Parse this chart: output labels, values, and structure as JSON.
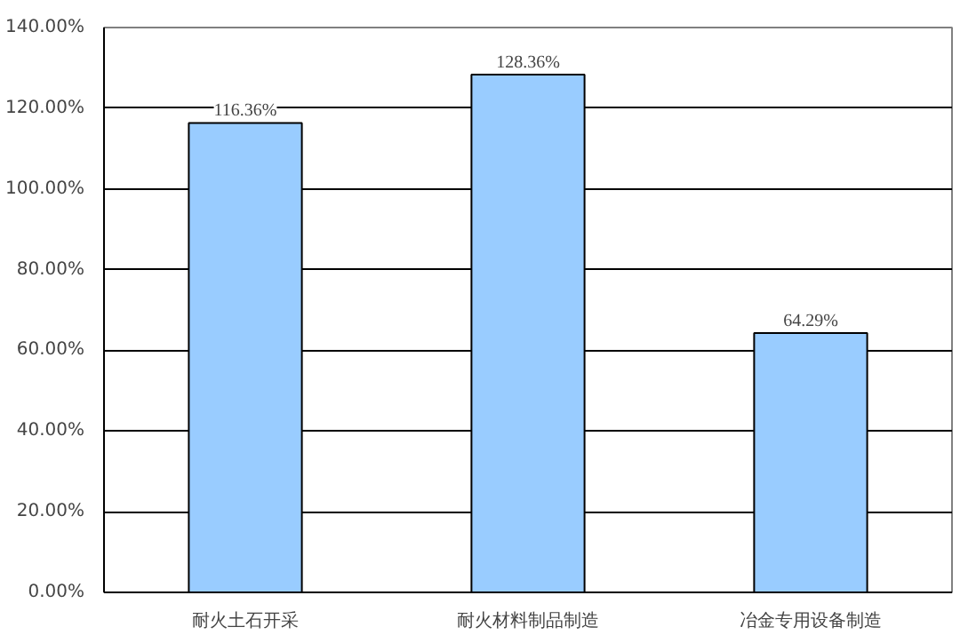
{
  "chart_data": {
    "type": "bar",
    "categories": [
      "耐火土石开采",
      "耐火材料制品制造",
      "冶金专用设备制造"
    ],
    "series": [
      {
        "color": "#99ccff",
        "values": [
          116.36,
          128.36,
          64.29
        ],
        "value_labels": [
          "116.36%",
          "128.36%",
          "64.29%"
        ]
      }
    ],
    "ylim": [
      0,
      140
    ],
    "yticks": [
      {
        "value": 0,
        "label": "0.00%"
      },
      {
        "value": 20,
        "label": "20.00%"
      },
      {
        "value": 40,
        "label": "40.00%"
      },
      {
        "value": 60,
        "label": "60.00%"
      },
      {
        "value": 80,
        "label": "80.00%"
      },
      {
        "value": 100,
        "label": "100.00%"
      },
      {
        "value": 120,
        "label": "120.00%"
      },
      {
        "value": 140,
        "label": "140.00%"
      }
    ],
    "grid": "y"
  }
}
